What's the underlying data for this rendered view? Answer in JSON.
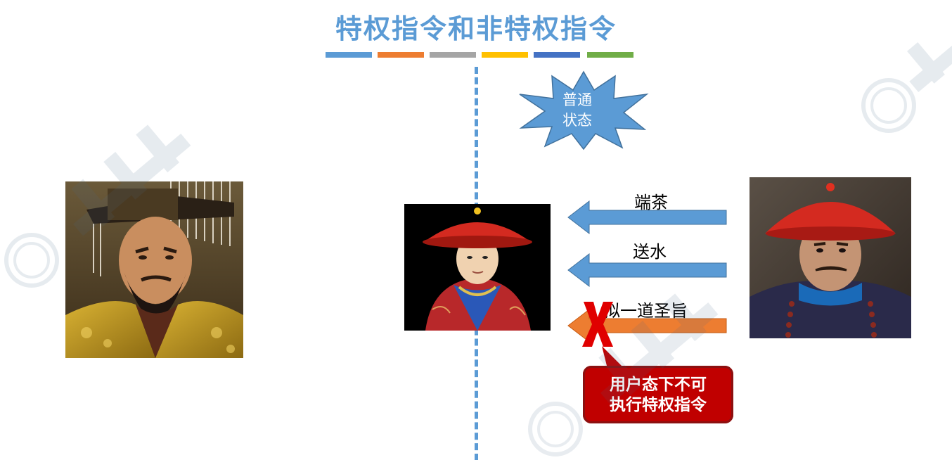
{
  "slide": {
    "title": "特权指令和非特权指令",
    "color_bars": [
      "#5b9bd5",
      "#ed7d31",
      "#a5a5a5",
      "#ffc000",
      "#4472c4",
      "#70ad47"
    ],
    "state_badge": {
      "line1": "普通",
      "line2": "状态"
    },
    "requests": [
      {
        "label": "端茶",
        "allowed": true,
        "color": "#5b9bd5"
      },
      {
        "label": "送水",
        "allowed": true,
        "color": "#5b9bd5"
      },
      {
        "label": "拟一道圣旨",
        "allowed": false,
        "color": "#ed7d31"
      }
    ],
    "warning": {
      "line1": "用户态下不可",
      "line2": "执行特权指令"
    },
    "colors": {
      "title": "#5b9bd5",
      "divider": "#5b9bd5",
      "forbidden_mark": "#e00000",
      "warning_bg": "#c00000"
    },
    "icons": [
      "emperor-portrait",
      "eunuch-portrait",
      "official-portrait",
      "forbidden-x-icon",
      "starburst-badge",
      "watermark-logo"
    ]
  }
}
